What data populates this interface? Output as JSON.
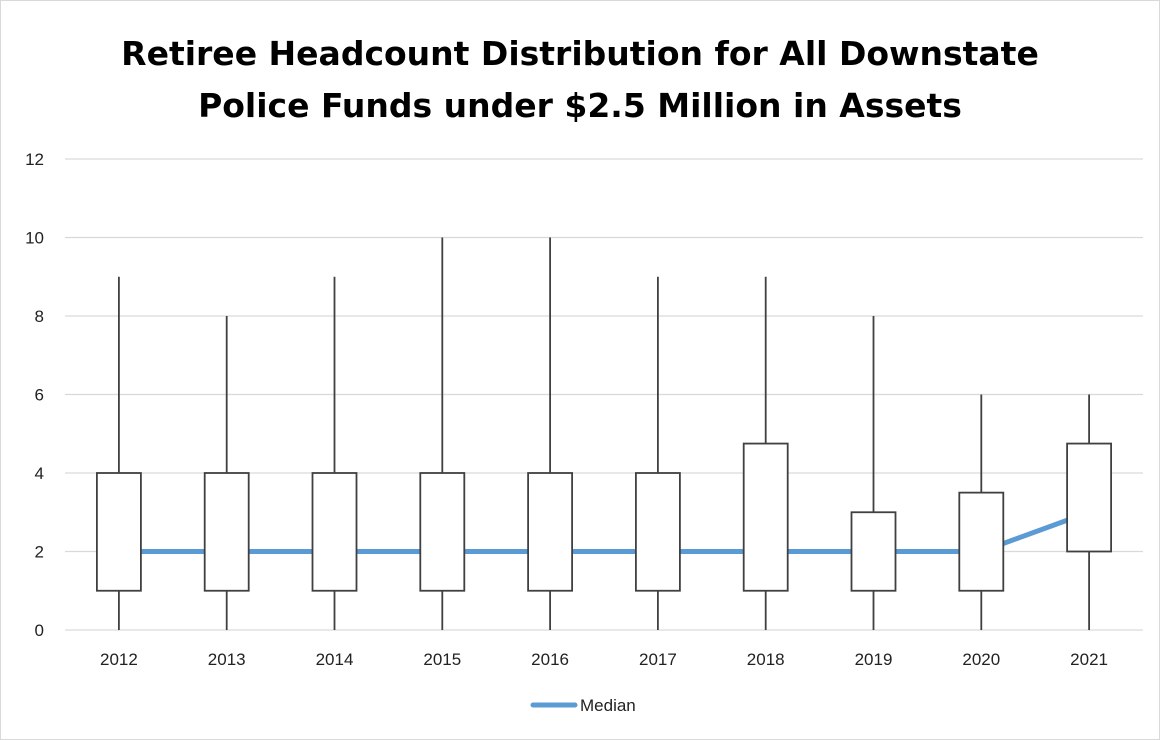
{
  "chart_data": {
    "type": "box",
    "title_line1": "Retiree Headcount Distribution for All Downstate",
    "title_line2": "Police Funds under $2.5 Million in Assets",
    "categories": [
      "2012",
      "2013",
      "2014",
      "2015",
      "2016",
      "2017",
      "2018",
      "2019",
      "2020",
      "2021"
    ],
    "boxes": [
      {
        "min": 0,
        "q1": 1,
        "median": 2,
        "q3": 4,
        "max": 9
      },
      {
        "min": 0,
        "q1": 1,
        "median": 2,
        "q3": 4,
        "max": 8
      },
      {
        "min": 0,
        "q1": 1,
        "median": 2,
        "q3": 4,
        "max": 9
      },
      {
        "min": 0,
        "q1": 1,
        "median": 2,
        "q3": 4,
        "max": 10
      },
      {
        "min": 0,
        "q1": 1,
        "median": 2,
        "q3": 4,
        "max": 10
      },
      {
        "min": 0,
        "q1": 1,
        "median": 2,
        "q3": 4,
        "max": 9
      },
      {
        "min": 0,
        "q1": 1,
        "median": 2,
        "q3": 4.75,
        "max": 9
      },
      {
        "min": 0,
        "q1": 1,
        "median": 2,
        "q3": 3,
        "max": 8
      },
      {
        "min": 0,
        "q1": 1,
        "median": 2,
        "q3": 3.5,
        "max": 6
      },
      {
        "min": 0,
        "q1": 2,
        "median": 3,
        "q3": 4.75,
        "max": 6
      }
    ],
    "series": [
      {
        "name": "Median",
        "values": [
          2,
          2,
          2,
          2,
          2,
          2,
          2,
          2,
          2,
          3
        ]
      }
    ],
    "yticks": [
      "0",
      "2",
      "4",
      "6",
      "8",
      "10",
      "12"
    ],
    "ylim": [
      0,
      12
    ],
    "grid": true,
    "legend_position": "bottom",
    "colors": {
      "median_line": "#5b9bd5",
      "box_stroke": "#404040",
      "gridline": "#d9d9d9"
    }
  }
}
